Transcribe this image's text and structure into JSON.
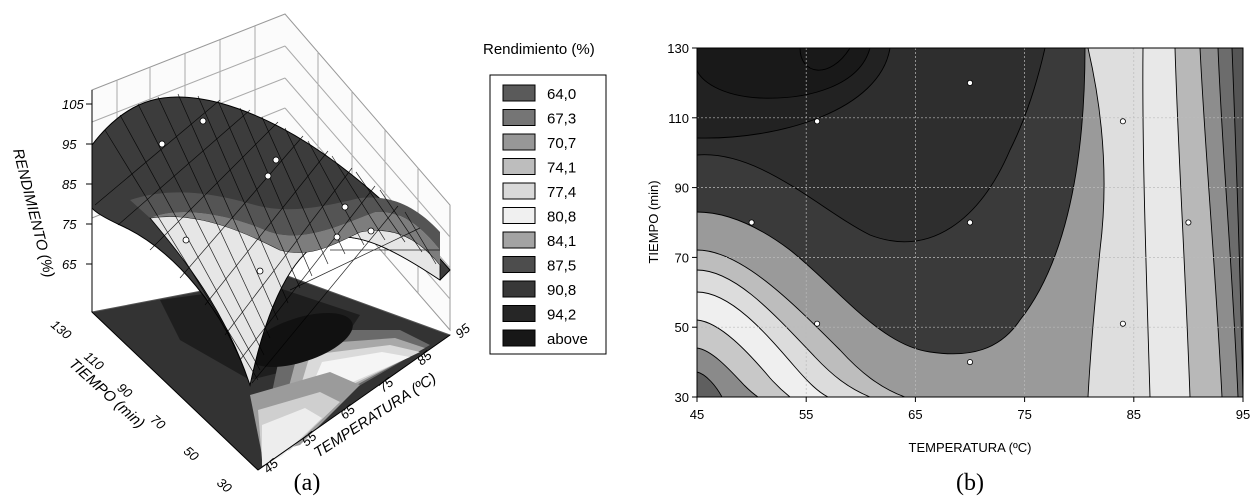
{
  "panels": {
    "a_label": "(a)",
    "b_label": "(b)"
  },
  "chart_data": [
    {
      "type": "surface3d",
      "zlabel": "RENDIMIENTO (%)",
      "xlabel": "TEMPERATURA (ºC)",
      "ylabel": "TIEMPO (min)",
      "zticks": [
        "105",
        "95",
        "85",
        "75",
        "65"
      ],
      "xticks": [
        "45",
        "55",
        "65",
        "75",
        "85",
        "95"
      ],
      "yticks": [
        "130",
        "110",
        "90",
        "70",
        "50",
        "30"
      ],
      "legend": {
        "title": "Rendimiento (%)",
        "entries": [
          {
            "label": "64,0",
            "color": "#5a5a5a"
          },
          {
            "label": "67,3",
            "color": "#757575"
          },
          {
            "label": "70,7",
            "color": "#979797"
          },
          {
            "label": "74,1",
            "color": "#bdbdbd"
          },
          {
            "label": "77,4",
            "color": "#d9d9d9"
          },
          {
            "label": "80,8",
            "color": "#f0f0f0"
          },
          {
            "label": "84,1",
            "color": "#a3a3a3"
          },
          {
            "label": "87,5",
            "color": "#4d4d4d"
          },
          {
            "label": "90,8",
            "color": "#383838"
          },
          {
            "label": "94,2",
            "color": "#262626"
          },
          {
            "label": "above",
            "color": "#171717"
          }
        ]
      }
    },
    {
      "type": "contour",
      "xlabel": "TEMPERATURA (ºC)",
      "ylabel": "TIEMPO (min)",
      "xlim": [
        45,
        95
      ],
      "ylim": [
        30,
        130
      ],
      "xticks": [
        45,
        55,
        65,
        75,
        85,
        95
      ],
      "yticks": [
        30,
        50,
        70,
        90,
        110,
        130
      ],
      "design_points": [
        {
          "x": 50,
          "y": 80
        },
        {
          "x": 56,
          "y": 51
        },
        {
          "x": 56,
          "y": 109
        },
        {
          "x": 70,
          "y": 40
        },
        {
          "x": 70,
          "y": 80
        },
        {
          "x": 70,
          "y": 120
        },
        {
          "x": 84,
          "y": 51
        },
        {
          "x": 84,
          "y": 109
        },
        {
          "x": 90,
          "y": 80
        }
      ]
    }
  ]
}
